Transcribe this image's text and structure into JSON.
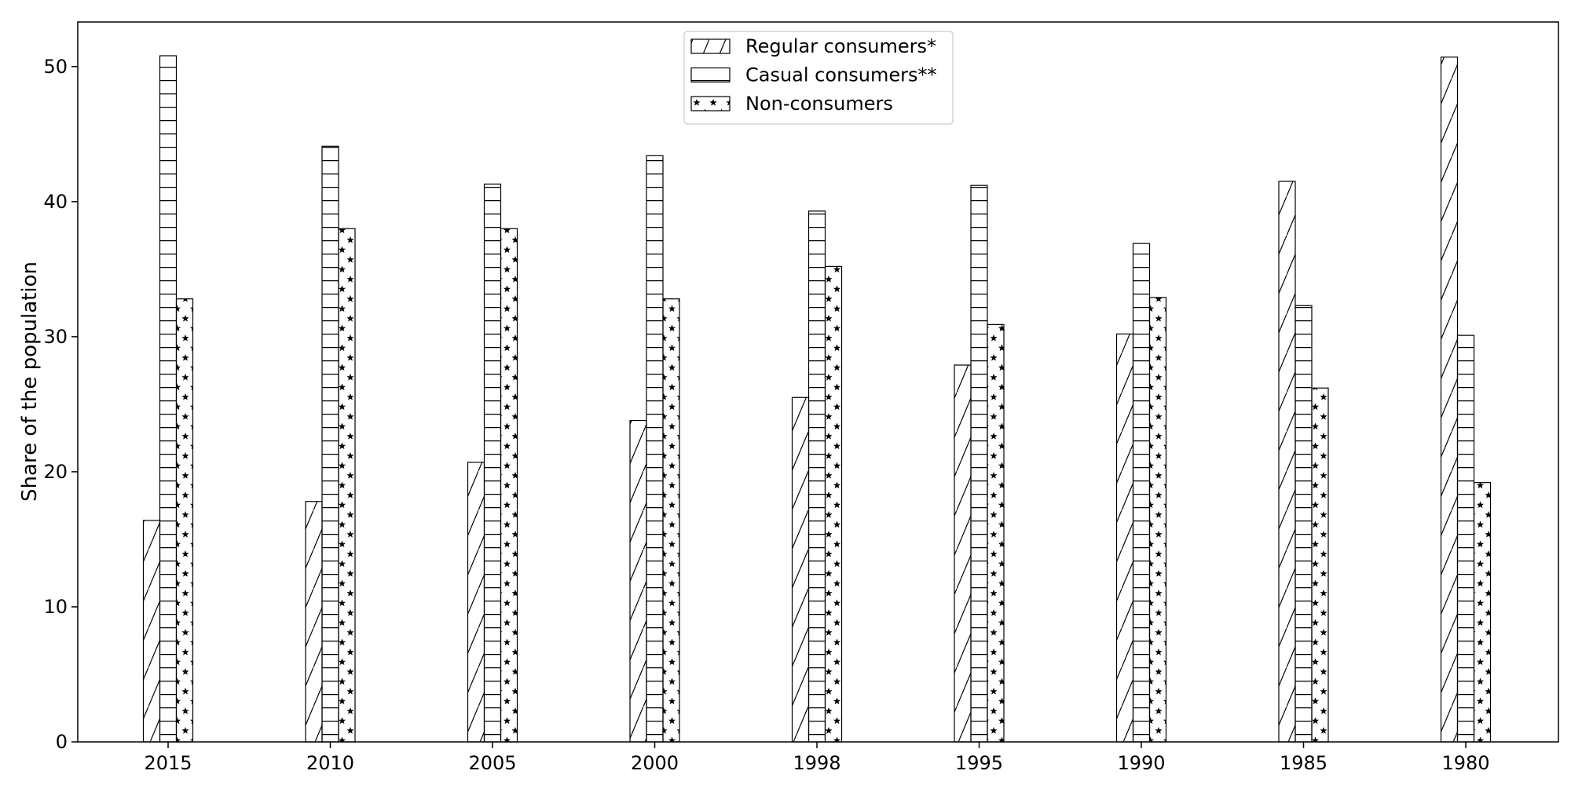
{
  "chart_data": {
    "type": "bar",
    "title": "",
    "xlabel": "",
    "ylabel": "Share of the population",
    "categories": [
      "2015",
      "2010",
      "2005",
      "2000",
      "1998",
      "1995",
      "1990",
      "1985",
      "1980"
    ],
    "series": [
      {
        "name": "Regular consumers*",
        "pattern": "diagonal-hatch",
        "values": [
          16.4,
          17.8,
          20.7,
          23.8,
          25.5,
          27.9,
          30.2,
          41.5,
          50.7
        ]
      },
      {
        "name": "Casual consumers**",
        "pattern": "horizontal-hatch",
        "values": [
          50.8,
          44.1,
          41.3,
          43.4,
          39.3,
          41.2,
          36.9,
          32.3,
          30.1
        ]
      },
      {
        "name": "Non-consumers",
        "pattern": "star-hatch",
        "values": [
          32.8,
          38.0,
          38.0,
          32.8,
          35.2,
          30.9,
          32.9,
          26.2,
          19.2
        ]
      }
    ],
    "ylim": [
      0,
      53.3
    ],
    "yticks": [
      0,
      10,
      20,
      30,
      40,
      50
    ],
    "grid": false,
    "legend_position": "top-center",
    "colors": {
      "bar_fill": "#ffffff",
      "bar_edge": "#000000",
      "axis": "#000000"
    }
  }
}
